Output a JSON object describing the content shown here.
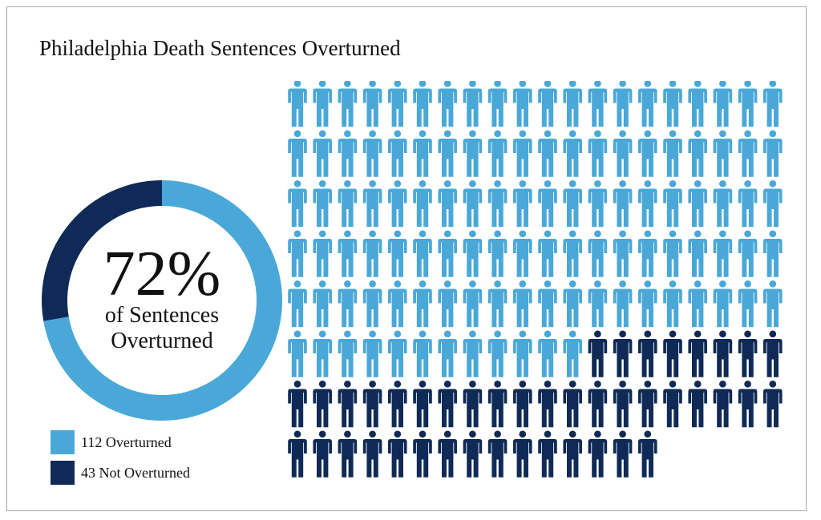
{
  "chart_data": {
    "type": "pictogram",
    "title": "Philadelphia Death Sentences Overturned",
    "center_value": "72%",
    "center_caption_line1": "of Sentences",
    "center_caption_line2": "Overturned",
    "series": [
      {
        "name": "Overturned",
        "value": 112,
        "label": "112 Overturned",
        "color": "#4aa8d8"
      },
      {
        "name": "Not Overturned",
        "value": 43,
        "label": "43 Not Overturned",
        "color": "#0f2a56"
      }
    ],
    "icons_per_row": 20,
    "legend_position": "bottom-left"
  }
}
